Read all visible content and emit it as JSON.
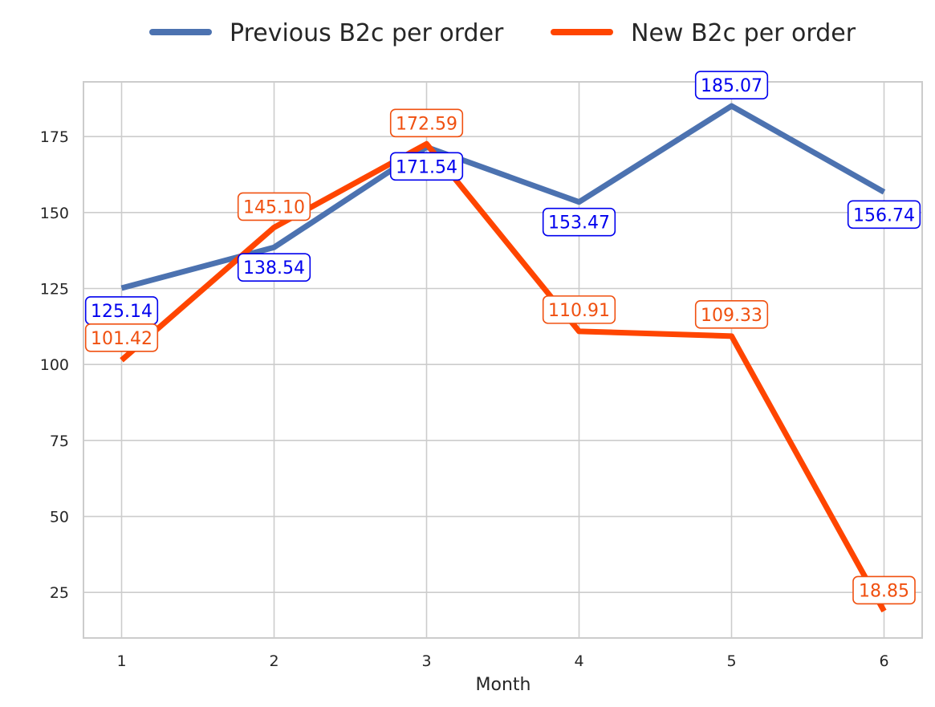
{
  "chart_data": {
    "type": "line",
    "title": "",
    "xlabel": "Month",
    "ylabel": "",
    "x": [
      1,
      2,
      3,
      4,
      5,
      6
    ],
    "xticks": [
      "1",
      "2",
      "3",
      "4",
      "5",
      "6"
    ],
    "yticks": [
      25,
      50,
      75,
      100,
      125,
      150,
      175
    ],
    "xlim": [
      0.75,
      6.25
    ],
    "ylim": [
      10.0,
      193.0
    ],
    "grid": true,
    "legend_position": "top-center",
    "series": [
      {
        "name": "Previous B2c per order",
        "values": [
          125.14,
          138.54,
          171.54,
          153.47,
          185.07,
          156.74
        ],
        "labels": [
          "125.14",
          "138.54",
          "171.54",
          "153.47",
          "185.07",
          "156.74"
        ],
        "color": "#4c72b0",
        "label_color": "#0000ee"
      },
      {
        "name": "New B2c per order",
        "values": [
          101.42,
          145.1,
          172.59,
          110.91,
          109.33,
          18.85
        ],
        "labels": [
          "101.42",
          "145.10",
          "172.59",
          "110.91",
          "109.33",
          "18.85"
        ],
        "color": "#ff4500",
        "label_color": "#f05010"
      }
    ]
  }
}
